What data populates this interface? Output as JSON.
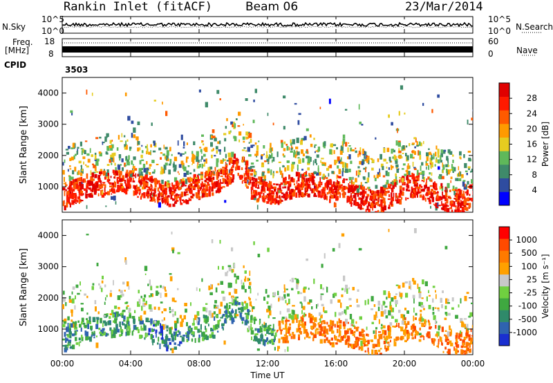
{
  "header": {
    "station": "Rankin Inlet (fitACF)",
    "beam": "Beam 06",
    "date": "23/Mar/2014"
  },
  "strips": {
    "nsky_label": "N.Sky",
    "nsearch_label": "N.Search",
    "nsky_ticks": [
      "10^5",
      "10^0"
    ],
    "nsearch_ticks": [
      "10^5",
      "10^0"
    ],
    "freq_label_1": "Freq.",
    "freq_label_2": "[MHz]",
    "freq_ticks": [
      "18",
      "8"
    ],
    "nave_label": "Nave",
    "nave_ticks": [
      "60",
      "0"
    ],
    "cpid_label": "CPID",
    "cpid_value": "3503"
  },
  "chart_data": [
    {
      "type": "heatmap",
      "name": "power",
      "ylabel": "Slant Range [km]",
      "yticks": [
        1000,
        2000,
        3000,
        4000
      ],
      "ylim": [
        180,
        4500
      ],
      "xlim": [
        0,
        24
      ],
      "colorbar_label": "Power [dB]",
      "colorbar_ticks": [
        "28",
        "24",
        "20",
        "16",
        "12",
        "8",
        "4"
      ],
      "colorbar_colors": [
        "#0000ff",
        "#2f4ca0",
        "#3f8a6a",
        "#5fb85a",
        "#e6cc20",
        "#ff9a00",
        "#ff5a00",
        "#ff1a00",
        "#e00000"
      ]
    },
    {
      "type": "heatmap",
      "name": "velocity",
      "ylabel": "Slant Range [km]",
      "yticks": [
        1000,
        2000,
        3000,
        4000
      ],
      "ylim": [
        180,
        4500
      ],
      "xlim": [
        0,
        24
      ],
      "xticks": [
        "00:00",
        "04:00",
        "08:00",
        "12:00",
        "16:00",
        "20:00",
        "00:00"
      ],
      "xlabel": "Time UT",
      "colorbar_label": "Velocity [m s⁻¹]",
      "colorbar_ticks": [
        "1000",
        "500",
        "100",
        "25",
        "-25",
        "-100",
        "-500",
        "-1000"
      ],
      "colorbar_colors": [
        "#1a2fd0",
        "#2f63b0",
        "#2f8a6a",
        "#3fa840",
        "#70d040",
        "#c8c8c8",
        "#ffa000",
        "#ff7a00",
        "#ff4a00",
        "#ff0000"
      ]
    }
  ]
}
